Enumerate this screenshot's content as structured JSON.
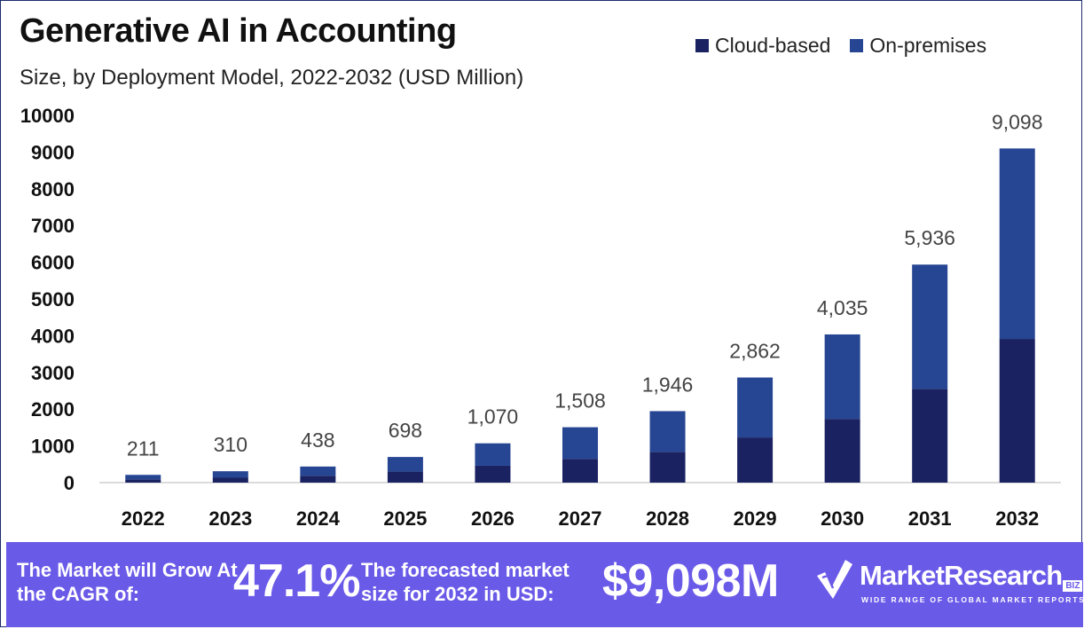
{
  "header": {
    "title": "Generative AI in Accounting",
    "subtitle": "Size, by Deployment Model, 2022-2032 (USD Million)"
  },
  "legend": [
    {
      "label": "Cloud-based",
      "color": "#1a2262"
    },
    {
      "label": "On-premises",
      "color": "#264693"
    }
  ],
  "chart_data": {
    "type": "bar",
    "stacked": true,
    "title": "Generative AI in Accounting",
    "subtitle": "Size, by Deployment Model, 2022-2032 (USD Million)",
    "xlabel": "",
    "ylabel": "",
    "ylim": [
      0,
      10000
    ],
    "yticks": [
      "0",
      "1000",
      "2000",
      "3000",
      "4000",
      "5000",
      "6000",
      "7000",
      "8000",
      "9000",
      "10000"
    ],
    "categories": [
      "2022",
      "2023",
      "2024",
      "2025",
      "2026",
      "2027",
      "2028",
      "2029",
      "2030",
      "2031",
      "2032"
    ],
    "series": [
      {
        "name": "Cloud-based",
        "color": "#1a2262",
        "values": [
          90,
          133,
          188,
          300,
          460,
          648,
          837,
          1230,
          1735,
          2552,
          3912
        ]
      },
      {
        "name": "On-premises",
        "color": "#264693",
        "values": [
          121,
          177,
          250,
          398,
          610,
          860,
          1109,
          1632,
          2300,
          3384,
          5186
        ]
      }
    ],
    "totals": [
      211,
      310,
      438,
      698,
      1070,
      1508,
      1946,
      2862,
      4035,
      5936,
      9098
    ],
    "total_labels": [
      "211",
      "310",
      "438",
      "698",
      "1,070",
      "1,508",
      "1,946",
      "2,862",
      "4,035",
      "5,936",
      "9,098"
    ],
    "legend_position": "top-right",
    "grid": false
  },
  "footer": {
    "cagr_label": "The Market will Grow At the CAGR of:",
    "cagr_value": "47.1%",
    "size_label": "The forecasted market size for 2032 in USD:",
    "size_value": "$9,098M",
    "logo_name": "MarketResearch",
    "logo_badge": "BIZ",
    "logo_tagline": "WIDE RANGE OF GLOBAL MARKET REPORTS",
    "background_color": "#6a5ae8"
  }
}
